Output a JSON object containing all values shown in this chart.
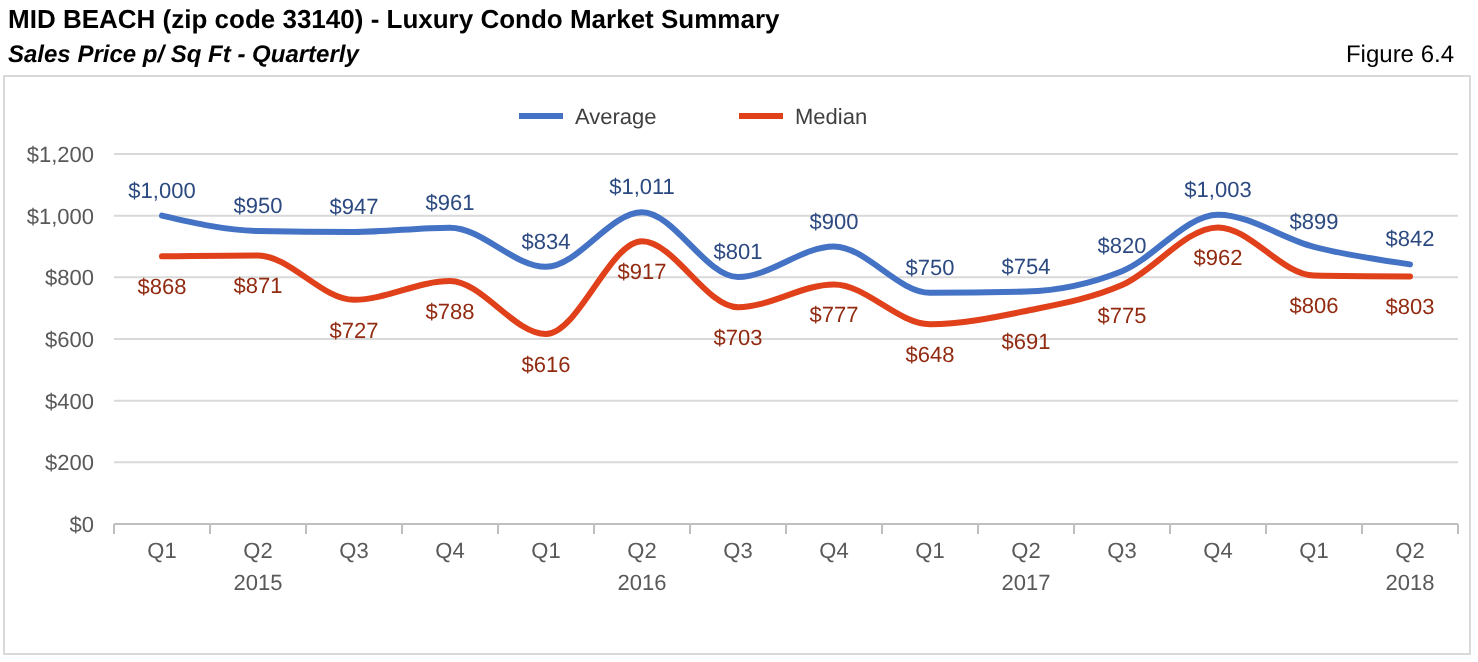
{
  "chart_data": {
    "type": "line",
    "title": "MID BEACH (zip code 33140) - Luxury Condo Market Summary",
    "subtitle": "Sales Price p/ Sq Ft - Quarterly",
    "annotations": [
      "Figure 6.4"
    ],
    "categories": [
      "Q1",
      "Q2\n2015",
      "Q3",
      "Q4",
      "Q1",
      "Q2\n2016",
      "Q3",
      "Q4",
      "Q1",
      "Q2\n2017",
      "Q3",
      "Q4",
      "Q1",
      "Q2\n2018"
    ],
    "series": [
      {
        "name": "Average",
        "color": "#4472c4",
        "values": [
          1000,
          950,
          947,
          961,
          834,
          1011,
          801,
          900,
          750,
          754,
          820,
          1003,
          899,
          842
        ],
        "value_labels": [
          "$1,000",
          "$950",
          "$947",
          "$961",
          "$834",
          "$1,011",
          "$801",
          "$900",
          "$750",
          "$754",
          "$820",
          "$1,003",
          "$899",
          "$842"
        ]
      },
      {
        "name": "Median",
        "color": "#e0401a",
        "values": [
          868,
          871,
          727,
          788,
          616,
          917,
          703,
          777,
          648,
          691,
          775,
          962,
          806,
          803
        ],
        "value_labels": [
          "$868",
          "$871",
          "$727",
          "$788",
          "$616",
          "$917",
          "$703",
          "$777",
          "$648",
          "$691",
          "$775",
          "$962",
          "$806",
          "$803"
        ]
      }
    ],
    "ylim": [
      0,
      1200
    ],
    "yticks": [
      {
        "value": 0,
        "label": "$0"
      },
      {
        "value": 200,
        "label": "$200"
      },
      {
        "value": 400,
        "label": "$400"
      },
      {
        "value": 600,
        "label": "$600"
      },
      {
        "value": 800,
        "label": "$800"
      },
      {
        "value": 1000,
        "label": "$1,000"
      },
      {
        "value": 1200,
        "label": "$1,200"
      }
    ],
    "grid": "y",
    "legend": "top",
    "marker": "none",
    "line_style": "solid"
  }
}
